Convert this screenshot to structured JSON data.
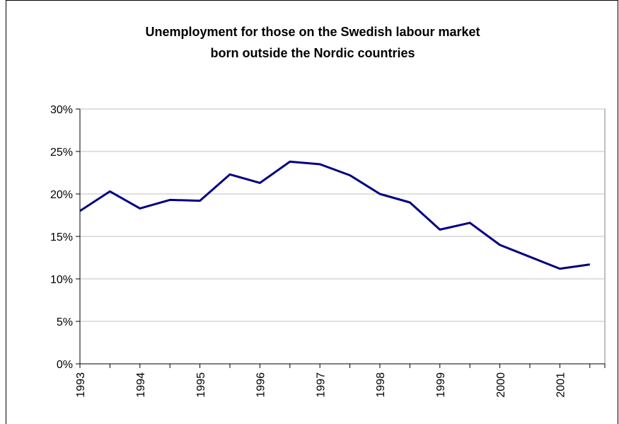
{
  "chart_data": {
    "type": "line",
    "title": [
      "Unemployment for those on the Swedish labour market",
      "born outside the Nordic countries"
    ],
    "categories": [
      "1993",
      null,
      "1994",
      null,
      "1995",
      null,
      "1996",
      null,
      "1997",
      null,
      "1998",
      null,
      "1999",
      null,
      "2000",
      null,
      "2001",
      null
    ],
    "series": [
      {
        "name": "Unemployment",
        "color": "#000080",
        "values": [
          18.0,
          20.3,
          18.3,
          19.3,
          19.2,
          22.3,
          21.3,
          23.8,
          23.5,
          22.2,
          20.0,
          19.0,
          15.8,
          16.6,
          14.0,
          12.6,
          11.2,
          11.7
        ]
      }
    ],
    "ylim": [
      0,
      30
    ],
    "yticks": [
      {
        "value": 0,
        "label": "0%"
      },
      {
        "value": 5,
        "label": "5%"
      },
      {
        "value": 10,
        "label": "10%"
      },
      {
        "value": 15,
        "label": "15%"
      },
      {
        "value": 20,
        "label": "20%"
      },
      {
        "value": 25,
        "label": "25%"
      },
      {
        "value": 30,
        "label": "30%"
      }
    ],
    "grid": true
  }
}
